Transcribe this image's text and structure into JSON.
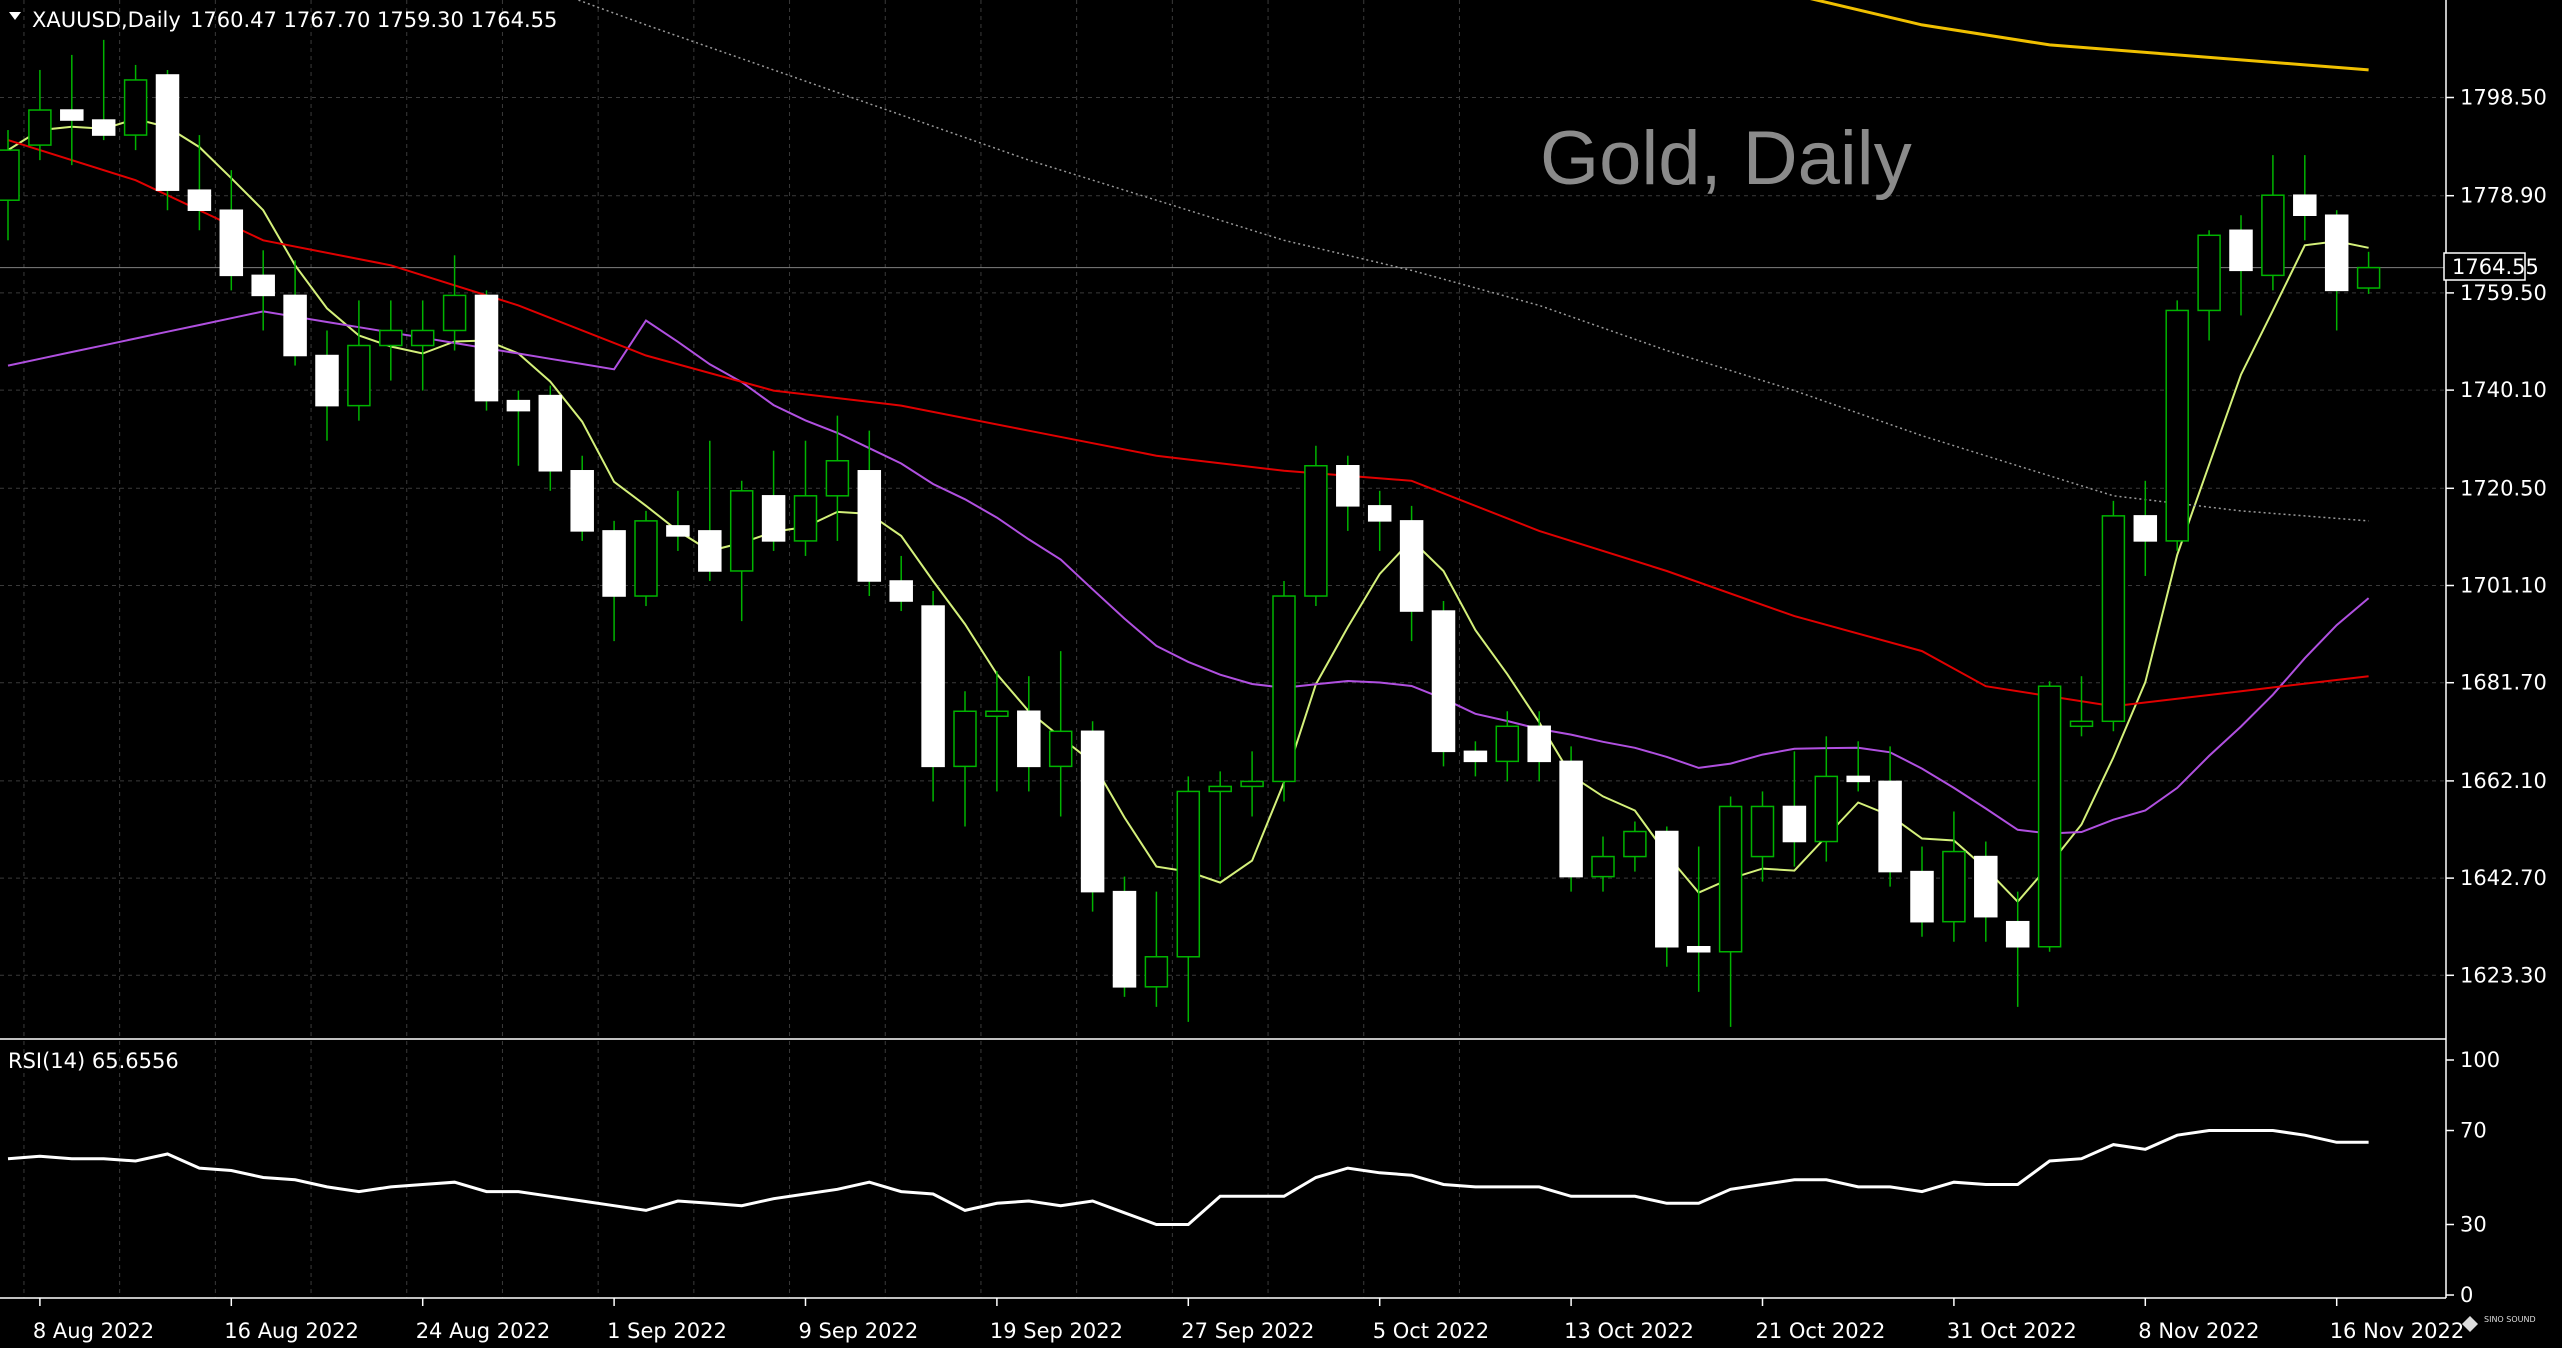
{
  "header": {
    "symbol": "XAUUSD,Daily",
    "ohlc": "1760.47 1767.70 1759.30 1764.55",
    "triangle_icon": "triangle-down-icon"
  },
  "watermark": "Gold, Daily",
  "logo": "SINO SOUND",
  "last_price_label": "1764.55",
  "colors": {
    "background": "#000000",
    "grid": "#3a3a3a",
    "bull_body": "#000000",
    "bear_body": "#ffffff",
    "wick": "#00b400",
    "ma_yellow_light": "#d4f07a",
    "ma_red": "#e00000",
    "ma_purple": "#b050e0",
    "ma_gold": "#f0c000",
    "ma_gray_dotted": "#9a9a9a",
    "rsi_line": "#ffffff"
  },
  "rsi": {
    "label": "RSI(14) 65.6556",
    "ticks": [
      {
        "label": "100",
        "value": 100
      },
      {
        "label": "70",
        "value": 70
      },
      {
        "label": "30",
        "value": 30
      },
      {
        "label": "0",
        "value": 0
      }
    ]
  },
  "chart_data": {
    "type": "candlestick",
    "price_ticks": [
      {
        "label": "1798.50",
        "value": 1798.5
      },
      {
        "label": "1778.90",
        "value": 1778.9
      },
      {
        "label": "1759.50",
        "value": 1759.5
      },
      {
        "label": "1740.10",
        "value": 1740.1
      },
      {
        "label": "1720.50",
        "value": 1720.5
      },
      {
        "label": "1701.10",
        "value": 1701.1
      },
      {
        "label": "1681.70",
        "value": 1681.7
      },
      {
        "label": "1662.10",
        "value": 1662.1
      },
      {
        "label": "1642.70",
        "value": 1642.7
      },
      {
        "label": "1623.30",
        "value": 1623.3
      }
    ],
    "date_ticks": [
      {
        "label": "8 Aug 2022",
        "index": 1
      },
      {
        "label": "16 Aug 2022",
        "index": 7
      },
      {
        "label": "24 Aug 2022",
        "index": 13
      },
      {
        "label": "1 Sep 2022",
        "index": 19
      },
      {
        "label": "9 Sep 2022",
        "index": 25
      },
      {
        "label": "19 Sep 2022",
        "index": 31
      },
      {
        "label": "27 Sep 2022",
        "index": 37
      },
      {
        "label": "5 Oct 2022",
        "index": 43
      },
      {
        "label": "13 Oct 2022",
        "index": 49
      },
      {
        "label": "21 Oct 2022",
        "index": 55
      },
      {
        "label": "31 Oct 2022",
        "index": 61
      },
      {
        "label": "8 Nov 2022",
        "index": 67
      },
      {
        "label": "16 Nov 2022",
        "index": 73
      }
    ],
    "candles": [
      [
        1778.0,
        1792.0,
        1770.0,
        1788.0
      ],
      [
        1789.0,
        1804.0,
        1786.0,
        1796.0
      ],
      [
        1796.0,
        1807.0,
        1785.0,
        1794.0
      ],
      [
        1794.0,
        1810.0,
        1790.0,
        1791.0
      ],
      [
        1791.0,
        1805.0,
        1788.0,
        1802.0
      ],
      [
        1803.0,
        1804.0,
        1776.0,
        1780.0
      ],
      [
        1780.0,
        1791.0,
        1772.0,
        1776.0
      ],
      [
        1776.0,
        1784.0,
        1760.0,
        1763.0
      ],
      [
        1763.0,
        1768.0,
        1752.0,
        1759.0
      ],
      [
        1759.0,
        1766.0,
        1745.0,
        1747.0
      ],
      [
        1747.0,
        1752.0,
        1730.0,
        1737.0
      ],
      [
        1737.0,
        1758.0,
        1734.0,
        1749.0
      ],
      [
        1749.0,
        1758.0,
        1742.0,
        1752.0
      ],
      [
        1749.0,
        1758.0,
        1740.0,
        1752.0
      ],
      [
        1752.0,
        1767.0,
        1748.0,
        1759.0
      ],
      [
        1759.0,
        1760.0,
        1736.0,
        1738.0
      ],
      [
        1738.0,
        1740.0,
        1725.0,
        1736.0
      ],
      [
        1739.0,
        1741.0,
        1720.0,
        1724.0
      ],
      [
        1724.0,
        1727.0,
        1710.0,
        1712.0
      ],
      [
        1712.0,
        1714.0,
        1690.0,
        1699.0
      ],
      [
        1699.0,
        1716.0,
        1697.0,
        1714.0
      ],
      [
        1713.0,
        1720.0,
        1708.0,
        1711.0
      ],
      [
        1712.0,
        1730.0,
        1702.0,
        1704.0
      ],
      [
        1704.0,
        1722.0,
        1694.0,
        1720.0
      ],
      [
        1719.0,
        1728.0,
        1708.0,
        1710.0
      ],
      [
        1710.0,
        1730.0,
        1707.0,
        1719.0
      ],
      [
        1719.0,
        1735.0,
        1710.0,
        1726.0
      ],
      [
        1724.0,
        1732.0,
        1699.0,
        1702.0
      ],
      [
        1702.0,
        1707.0,
        1696.0,
        1698.0
      ],
      [
        1697.0,
        1700.0,
        1658.0,
        1665.0
      ],
      [
        1665.0,
        1680.0,
        1653.0,
        1676.0
      ],
      [
        1675.0,
        1684.0,
        1660.0,
        1676.0
      ],
      [
        1676.0,
        1683.0,
        1660.0,
        1665.0
      ],
      [
        1665.0,
        1688.0,
        1655.0,
        1672.0
      ],
      [
        1672.0,
        1674.0,
        1636.0,
        1640.0
      ],
      [
        1640.0,
        1643.0,
        1619.0,
        1621.0
      ],
      [
        1621.0,
        1640.0,
        1617.0,
        1627.0
      ],
      [
        1627.0,
        1663.0,
        1614.0,
        1660.0
      ],
      [
        1660.0,
        1664.0,
        1643.0,
        1661.0
      ],
      [
        1661.0,
        1668.0,
        1655.0,
        1662.0
      ],
      [
        1662.0,
        1702.0,
        1658.0,
        1699.0
      ],
      [
        1699.0,
        1729.0,
        1697.0,
        1725.0
      ],
      [
        1725.0,
        1727.0,
        1712.0,
        1717.0
      ],
      [
        1717.0,
        1720.0,
        1708.0,
        1714.0
      ],
      [
        1714.0,
        1717.0,
        1690.0,
        1696.0
      ],
      [
        1696.0,
        1698.0,
        1665.0,
        1668.0
      ],
      [
        1668.0,
        1670.0,
        1663.0,
        1666.0
      ],
      [
        1666.0,
        1676.0,
        1662.0,
        1673.0
      ],
      [
        1673.0,
        1676.0,
        1662.0,
        1666.0
      ],
      [
        1666.0,
        1669.0,
        1640.0,
        1643.0
      ],
      [
        1643.0,
        1651.0,
        1640.0,
        1647.0
      ],
      [
        1647.0,
        1654.0,
        1644.0,
        1652.0
      ],
      [
        1652.0,
        1653.0,
        1625.0,
        1629.0
      ],
      [
        1629.0,
        1649.0,
        1620.0,
        1628.0
      ],
      [
        1628.0,
        1659.0,
        1613.0,
        1657.0
      ],
      [
        1647.0,
        1660.0,
        1642.0,
        1657.0
      ],
      [
        1657.0,
        1668.0,
        1645.0,
        1650.0
      ],
      [
        1650.0,
        1671.0,
        1646.0,
        1663.0
      ],
      [
        1663.0,
        1670.0,
        1660.0,
        1662.0
      ],
      [
        1662.0,
        1669.0,
        1641.0,
        1644.0
      ],
      [
        1644.0,
        1649.0,
        1631.0,
        1634.0
      ],
      [
        1634.0,
        1656.0,
        1630.0,
        1648.0
      ],
      [
        1647.0,
        1650.0,
        1630.0,
        1635.0
      ],
      [
        1634.0,
        1640.0,
        1617.0,
        1629.0
      ],
      [
        1629.0,
        1682.0,
        1628.0,
        1681.0
      ],
      [
        1673.0,
        1683.0,
        1671.0,
        1674.0
      ],
      [
        1674.0,
        1718.0,
        1672.0,
        1715.0
      ],
      [
        1715.0,
        1722.0,
        1703.0,
        1710.0
      ],
      [
        1710.0,
        1758.0,
        1708.0,
        1756.0
      ],
      [
        1756.0,
        1772.0,
        1750.0,
        1771.0
      ],
      [
        1772.0,
        1775.0,
        1755.0,
        1764.0
      ],
      [
        1763.0,
        1787.0,
        1760.0,
        1779.0
      ],
      [
        1779.0,
        1787.0,
        1770.0,
        1775.0
      ],
      [
        1775.0,
        1776.0,
        1752.0,
        1760.0
      ],
      [
        1760.47,
        1767.7,
        1759.3,
        1764.55
      ]
    ]
  }
}
